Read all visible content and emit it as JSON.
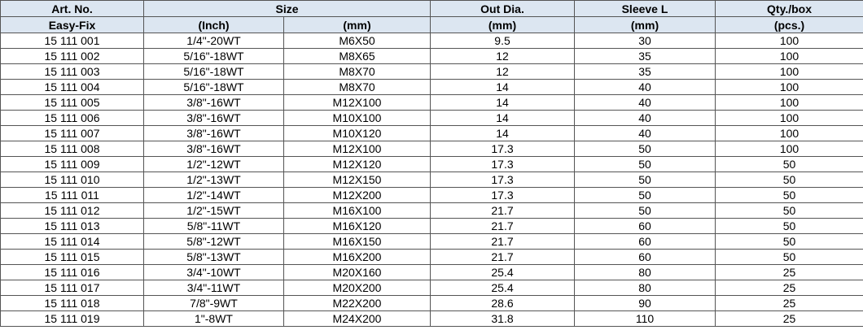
{
  "header": {
    "art": "Art. No.",
    "size": "Size",
    "out": "Out Dia.",
    "sleeve": "Sleeve L",
    "qty": "Qty./box",
    "art_sub": "Easy-Fix",
    "inch": "(Inch)",
    "mm": "(mm)",
    "out_sub": "(mm)",
    "sleeve_sub": "(mm)",
    "qty_sub": "(pcs.)"
  },
  "header_color": "#dce6f1",
  "rows": [
    [
      "15 111 001",
      "1/4\"-20WT",
      "M6X50",
      "9.5",
      "30",
      "100"
    ],
    [
      "15 111 002",
      "5/16\"-18WT",
      "M8X65",
      "12",
      "35",
      "100"
    ],
    [
      "15 111 003",
      "5/16\"-18WT",
      "M8X70",
      "12",
      "35",
      "100"
    ],
    [
      "15 111 004",
      "5/16\"-18WT",
      "M8X70",
      "14",
      "40",
      "100"
    ],
    [
      "15 111 005",
      "3/8\"-16WT",
      "M12X100",
      "14",
      "40",
      "100"
    ],
    [
      "15 111 006",
      "3/8\"-16WT",
      "M10X100",
      "14",
      "40",
      "100"
    ],
    [
      "15 111 007",
      "3/8\"-16WT",
      "M10X120",
      "14",
      "40",
      "100"
    ],
    [
      "15 111 008",
      "3/8\"-16WT",
      "M12X100",
      "17.3",
      "50",
      "100"
    ],
    [
      "15 111 009",
      "1/2\"-12WT",
      "M12X120",
      "17.3",
      "50",
      "50"
    ],
    [
      "15 111 010",
      "1/2\"-13WT",
      "M12X150",
      "17.3",
      "50",
      "50"
    ],
    [
      "15 111 011",
      "1/2\"-14WT",
      "M12X200",
      "17.3",
      "50",
      "50"
    ],
    [
      "15 111 012",
      "1/2\"-15WT",
      "M16X100",
      "21.7",
      "50",
      "50"
    ],
    [
      "15 111 013",
      "5/8\"-11WT",
      "M16X120",
      "21.7",
      "60",
      "50"
    ],
    [
      "15 111 014",
      "5/8\"-12WT",
      "M16X150",
      "21.7",
      "60",
      "50"
    ],
    [
      "15 111 015",
      "5/8\"-13WT",
      "M16X200",
      "21.7",
      "60",
      "50"
    ],
    [
      "15 111 016",
      "3/4\"-10WT",
      "M20X160",
      "25.4",
      "80",
      "25"
    ],
    [
      "15 111 017",
      "3/4\"-11WT",
      "M20X200",
      "25.4",
      "80",
      "25"
    ],
    [
      "15 111 018",
      "7/8\"-9WT",
      "M22X200",
      "28.6",
      "90",
      "25"
    ],
    [
      "15 111 019",
      "1\"-8WT",
      "M24X200",
      "31.8",
      "110",
      "25"
    ]
  ]
}
